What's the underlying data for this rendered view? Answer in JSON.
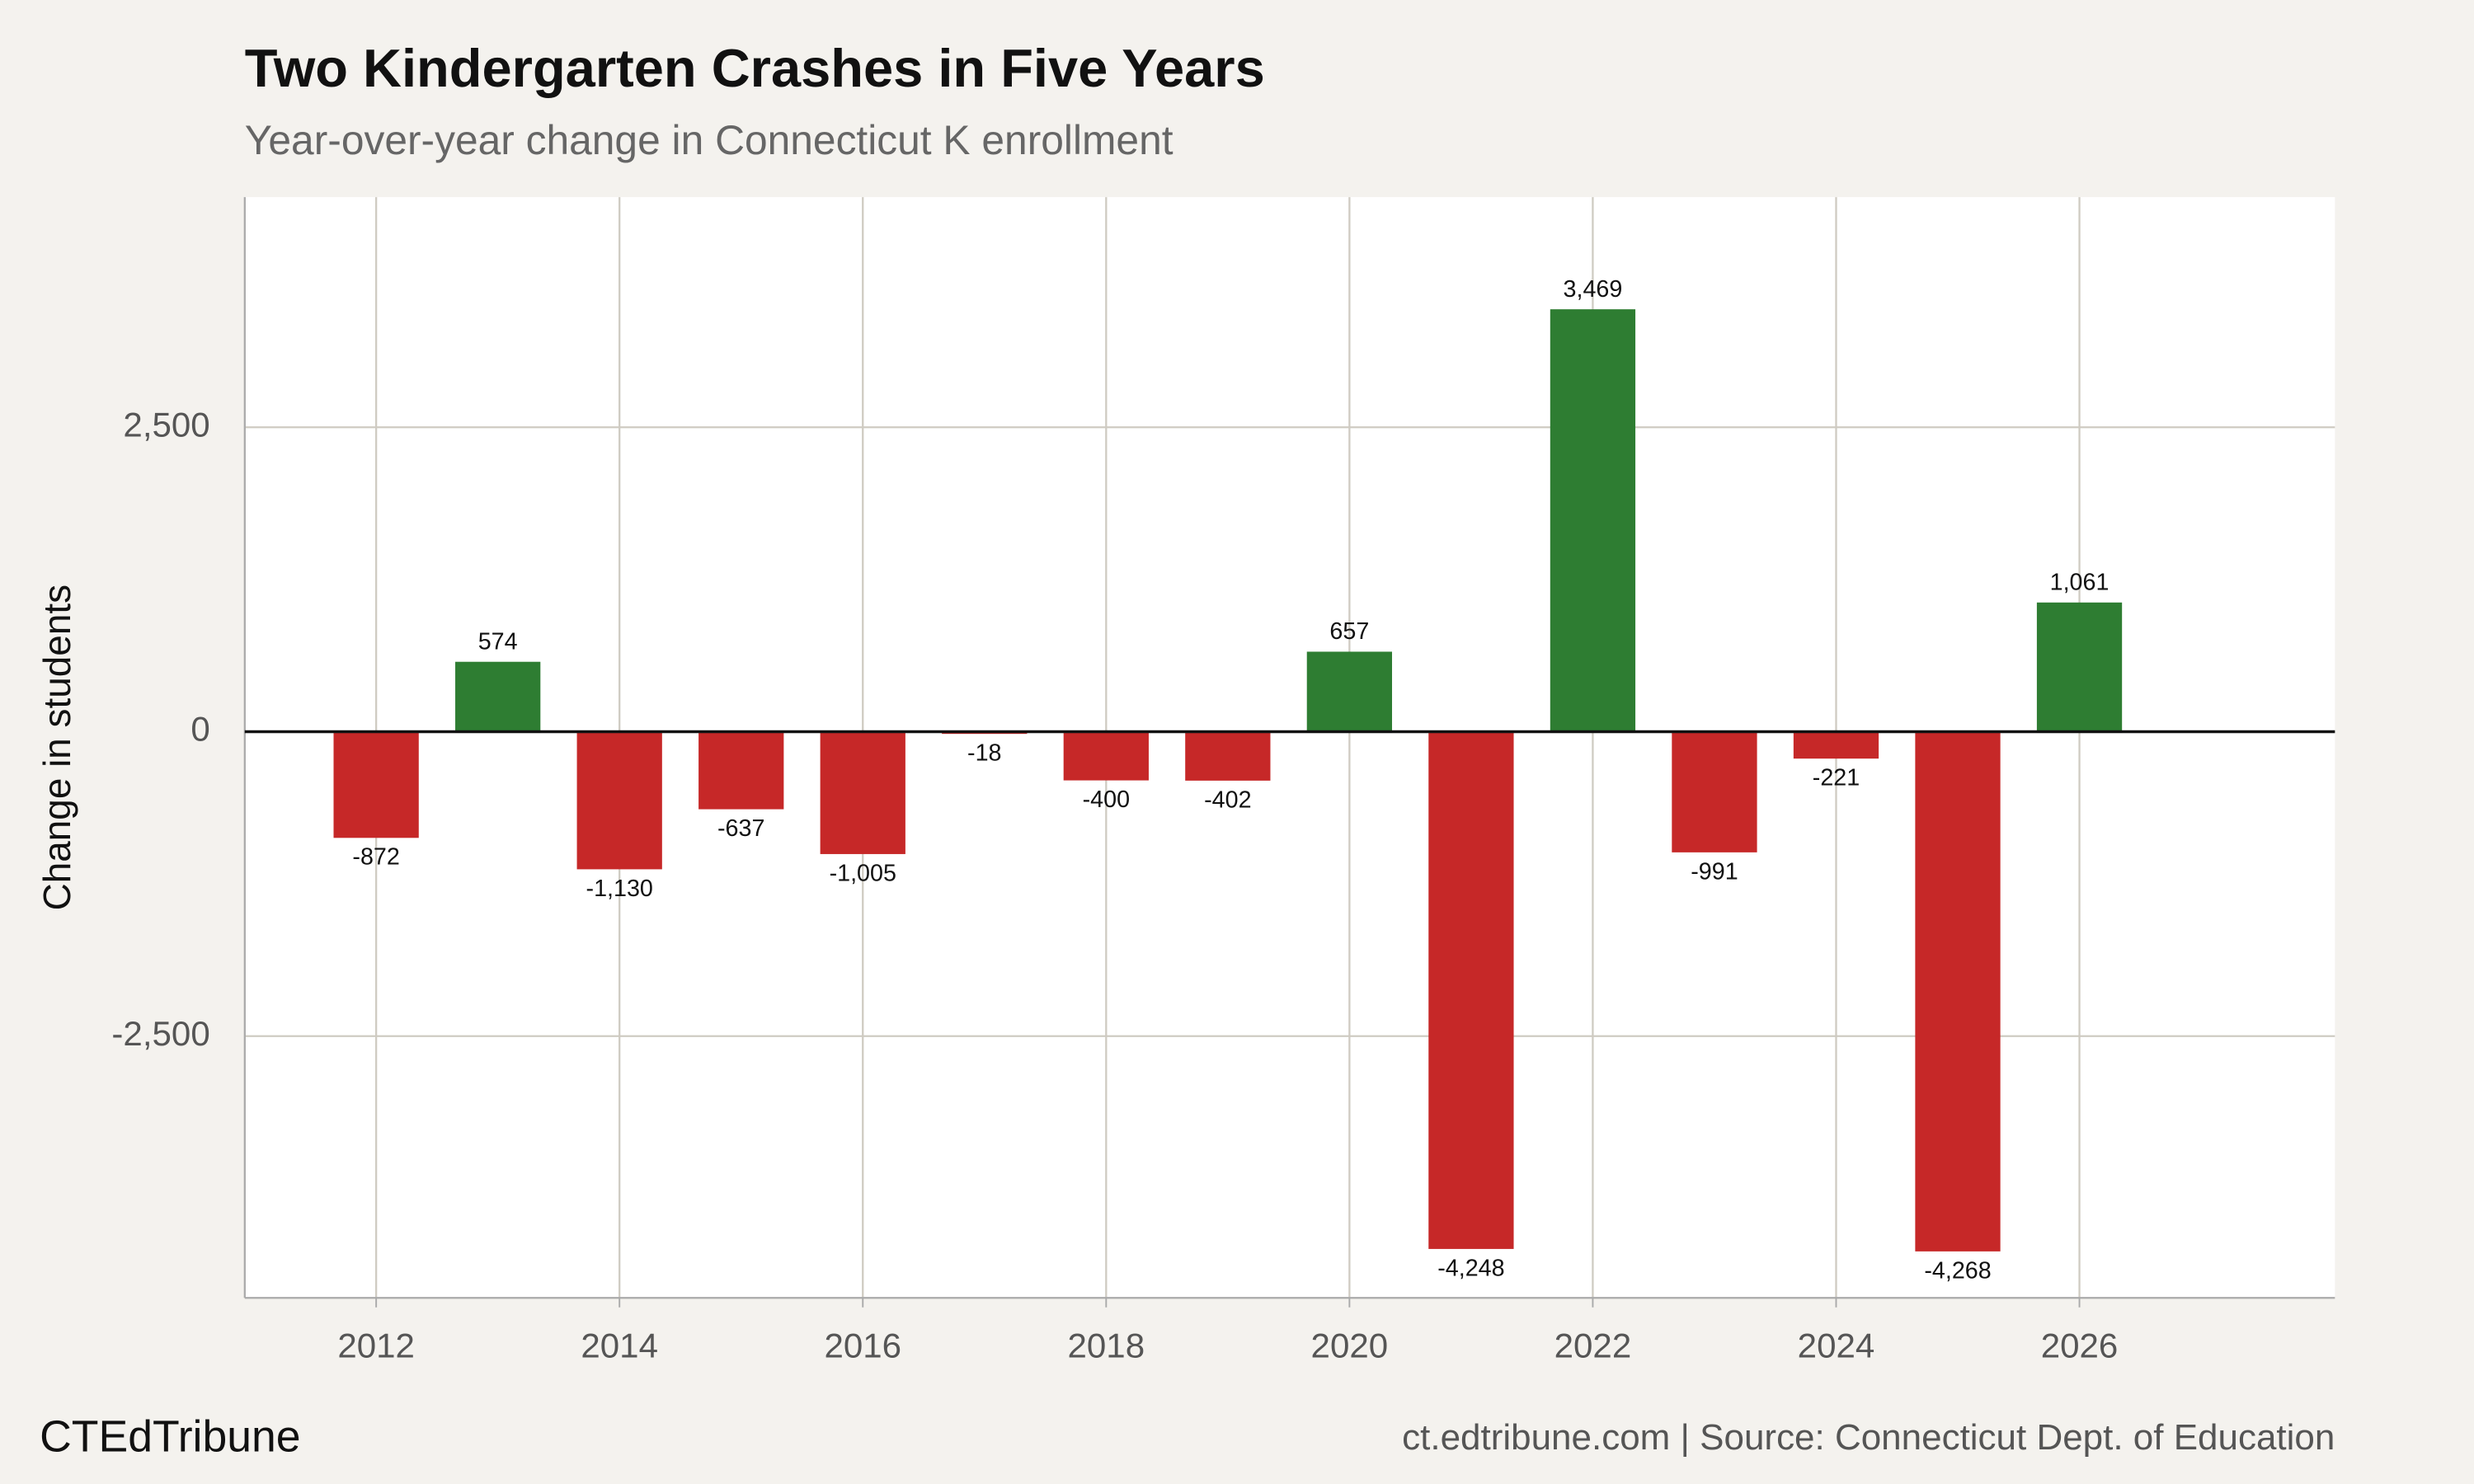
{
  "chart_data": {
    "type": "bar",
    "title": "Two Kindergarten Crashes in Five Years",
    "subtitle": "Year-over-year change in Connecticut K enrollment",
    "y_label": "Change in students",
    "brand": "CTEdTribune",
    "source": "ct.edtribune.com | Source: Connecticut Dept. of Education",
    "x": [
      2012,
      2013,
      2014,
      2015,
      2016,
      2017,
      2018,
      2019,
      2020,
      2021,
      2022,
      2023,
      2024,
      2025,
      2026
    ],
    "values": [
      -872,
      574,
      -1130,
      -637,
      -1005,
      -18,
      -400,
      -402,
      657,
      -4248,
      3469,
      -991,
      -221,
      -4268,
      1061
    ],
    "value_labels": [
      "-872",
      "574",
      "-1,130",
      "-637",
      "-1,005",
      "-18",
      "-400",
      "-402",
      "657",
      "-4,248",
      "3,469",
      "-991",
      "-221",
      "-4,268",
      "1,061"
    ],
    "positive_color": "#2e7d32",
    "negative_color": "#c62828",
    "xlim": [
      2010.92,
      2028.1
    ],
    "xticks": [
      2012,
      2014,
      2016,
      2018,
      2020,
      2022,
      2024,
      2026
    ],
    "ylim": [
      -4650,
      4390
    ],
    "yticks": [
      {
        "value": -2500,
        "label": "-2,500"
      },
      0,
      {
        "value": 2500,
        "label": "2,500"
      }
    ],
    "grid": true
  }
}
